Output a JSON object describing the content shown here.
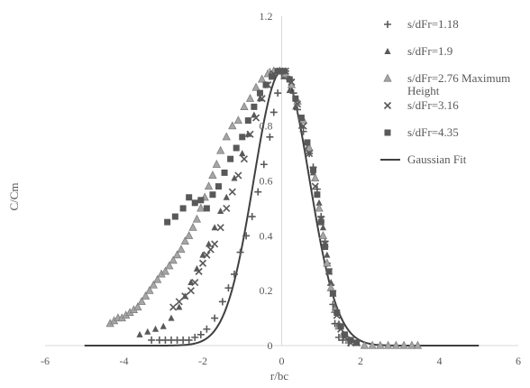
{
  "chart_data": {
    "type": "scatter",
    "title": "",
    "xlabel": "r/bc",
    "ylabel": "C/Cm",
    "xlim": [
      -6,
      6
    ],
    "ylim": [
      0,
      1.2
    ],
    "x_ticks": [
      "-6",
      "-4",
      "-2",
      "0",
      "2",
      "4",
      "6"
    ],
    "y_ticks": [
      "0",
      "0.2",
      "0.4",
      "0.6",
      "0.8",
      "1",
      "1.2"
    ],
    "grid": false,
    "legend_position": "top-right",
    "colors": {
      "markers": "#595959",
      "fit_line": "#404040",
      "axis": "#d9d9d9",
      "text": "#595959"
    },
    "series": [
      {
        "name": "s/dFr=1.18",
        "marker": "plus",
        "points": [
          [
            -3.3,
            0.02
          ],
          [
            -3.1,
            0.02
          ],
          [
            -2.95,
            0.02
          ],
          [
            -2.8,
            0.02
          ],
          [
            -2.65,
            0.02
          ],
          [
            -2.5,
            0.02
          ],
          [
            -2.35,
            0.02
          ],
          [
            -2.2,
            0.03
          ],
          [
            -2.05,
            0.04
          ],
          [
            -1.9,
            0.06
          ],
          [
            -1.7,
            0.1
          ],
          [
            -1.5,
            0.16
          ],
          [
            -1.35,
            0.21
          ],
          [
            -1.2,
            0.26
          ],
          [
            -1.05,
            0.34
          ],
          [
            -0.9,
            0.4
          ],
          [
            -0.75,
            0.47
          ],
          [
            -0.6,
            0.56
          ],
          [
            -0.45,
            0.66
          ],
          [
            -0.3,
            0.76
          ],
          [
            -0.2,
            0.85
          ],
          [
            -0.1,
            0.92
          ],
          [
            0.0,
            0.99
          ],
          [
            0.1,
            1.0
          ],
          [
            0.2,
            0.97
          ],
          [
            0.3,
            0.92
          ],
          [
            0.4,
            0.86
          ],
          [
            0.55,
            0.78
          ],
          [
            0.7,
            0.7
          ],
          [
            0.8,
            0.65
          ],
          [
            0.9,
            0.57
          ],
          [
            1.0,
            0.47
          ],
          [
            1.1,
            0.38
          ],
          [
            1.15,
            0.3
          ],
          [
            1.25,
            0.22
          ],
          [
            1.3,
            0.15
          ],
          [
            1.35,
            0.08
          ],
          [
            1.45,
            0.03
          ],
          [
            1.55,
            0.02
          ],
          [
            1.7,
            0.01
          ]
        ]
      },
      {
        "name": "s/dFr=1.9",
        "marker": "triangle",
        "points": [
          [
            -3.6,
            0.04
          ],
          [
            -3.4,
            0.05
          ],
          [
            -3.2,
            0.06
          ],
          [
            -3.0,
            0.07
          ],
          [
            -2.8,
            0.1
          ],
          [
            -2.6,
            0.14
          ],
          [
            -2.45,
            0.18
          ],
          [
            -2.3,
            0.23
          ],
          [
            -2.15,
            0.28
          ],
          [
            -2.0,
            0.33
          ],
          [
            -1.85,
            0.37
          ],
          [
            -1.7,
            0.43
          ],
          [
            -1.55,
            0.49
          ],
          [
            -1.4,
            0.54
          ],
          [
            -1.2,
            0.61
          ],
          [
            -1.0,
            0.7
          ],
          [
            -0.85,
            0.77
          ],
          [
            -0.7,
            0.84
          ],
          [
            -0.55,
            0.9
          ],
          [
            -0.4,
            0.95
          ],
          [
            -0.25,
            0.98
          ],
          [
            -0.1,
            1.0
          ],
          [
            0.05,
            0.98
          ],
          [
            0.2,
            0.93
          ],
          [
            0.35,
            0.87
          ],
          [
            0.5,
            0.8
          ],
          [
            0.65,
            0.72
          ],
          [
            0.8,
            0.63
          ],
          [
            0.95,
            0.52
          ],
          [
            1.05,
            0.43
          ],
          [
            1.15,
            0.33
          ],
          [
            1.25,
            0.23
          ],
          [
            1.35,
            0.14
          ],
          [
            1.45,
            0.08
          ],
          [
            1.55,
            0.04
          ],
          [
            1.7,
            0.02
          ]
        ]
      },
      {
        "name": "s/dFr=2.76 Maximum Height",
        "marker": "triangle-open",
        "points": [
          [
            -4.35,
            0.08
          ],
          [
            -4.25,
            0.09
          ],
          [
            -4.15,
            0.1
          ],
          [
            -4.05,
            0.1
          ],
          [
            -3.95,
            0.11
          ],
          [
            -3.85,
            0.12
          ],
          [
            -3.75,
            0.13
          ],
          [
            -3.65,
            0.14
          ],
          [
            -3.55,
            0.16
          ],
          [
            -3.45,
            0.18
          ],
          [
            -3.35,
            0.2
          ],
          [
            -3.25,
            0.22
          ],
          [
            -3.15,
            0.24
          ],
          [
            -3.05,
            0.26
          ],
          [
            -2.95,
            0.27
          ],
          [
            -2.85,
            0.29
          ],
          [
            -2.75,
            0.31
          ],
          [
            -2.65,
            0.33
          ],
          [
            -2.55,
            0.35
          ],
          [
            -2.45,
            0.38
          ],
          [
            -2.35,
            0.4
          ],
          [
            -2.25,
            0.43
          ],
          [
            -2.15,
            0.46
          ],
          [
            -2.05,
            0.5
          ],
          [
            -1.95,
            0.54
          ],
          [
            -1.85,
            0.58
          ],
          [
            -1.75,
            0.62
          ],
          [
            -1.65,
            0.66
          ],
          [
            -1.55,
            0.71
          ],
          [
            -1.4,
            0.76
          ],
          [
            -1.25,
            0.8
          ],
          [
            -1.1,
            0.82
          ],
          [
            -0.95,
            0.87
          ],
          [
            -0.8,
            0.9
          ],
          [
            -0.65,
            0.94
          ],
          [
            -0.5,
            0.97
          ],
          [
            -0.35,
            0.99
          ],
          [
            -0.2,
            1.0
          ],
          [
            -0.05,
            1.0
          ],
          [
            0.1,
            0.99
          ],
          [
            0.25,
            0.95
          ],
          [
            0.4,
            0.89
          ],
          [
            0.55,
            0.82
          ],
          [
            0.7,
            0.72
          ],
          [
            0.85,
            0.61
          ],
          [
            0.95,
            0.5
          ],
          [
            1.05,
            0.4
          ],
          [
            1.15,
            0.3
          ],
          [
            1.25,
            0.21
          ],
          [
            1.35,
            0.13
          ],
          [
            1.45,
            0.07
          ],
          [
            1.55,
            0.04
          ],
          [
            1.7,
            0.02
          ],
          [
            1.9,
            0.01
          ],
          [
            2.1,
            0.0
          ],
          [
            2.3,
            0.0
          ],
          [
            2.5,
            0.0
          ],
          [
            2.7,
            0.0
          ],
          [
            2.9,
            0.0
          ],
          [
            3.1,
            0.0
          ],
          [
            3.3,
            0.0
          ],
          [
            3.45,
            0.0
          ]
        ]
      },
      {
        "name": "s/dFr=3.16",
        "marker": "cross",
        "points": [
          [
            -2.75,
            0.14
          ],
          [
            -2.6,
            0.16
          ],
          [
            -2.45,
            0.18
          ],
          [
            -2.3,
            0.2
          ],
          [
            -2.2,
            0.23
          ],
          [
            -2.1,
            0.27
          ],
          [
            -2.0,
            0.3
          ],
          [
            -1.9,
            0.33
          ],
          [
            -1.8,
            0.35
          ],
          [
            -1.7,
            0.37
          ],
          [
            -1.55,
            0.43
          ],
          [
            -1.4,
            0.5
          ],
          [
            -1.25,
            0.56
          ],
          [
            -1.1,
            0.62
          ],
          [
            -0.95,
            0.68
          ],
          [
            -0.8,
            0.77
          ],
          [
            -0.65,
            0.83
          ],
          [
            -0.5,
            0.9
          ],
          [
            -0.35,
            0.95
          ],
          [
            -0.2,
            0.99
          ],
          [
            -0.05,
            1.0
          ],
          [
            0.1,
            1.0
          ],
          [
            0.25,
            0.96
          ],
          [
            0.4,
            0.88
          ],
          [
            0.55,
            0.8
          ],
          [
            0.7,
            0.7
          ],
          [
            0.85,
            0.58
          ],
          [
            1.0,
            0.46
          ],
          [
            1.1,
            0.37
          ],
          [
            1.2,
            0.27
          ],
          [
            1.3,
            0.19
          ],
          [
            1.4,
            0.11
          ],
          [
            1.5,
            0.06
          ],
          [
            1.6,
            0.03
          ],
          [
            1.75,
            0.01
          ],
          [
            1.9,
            0.01
          ]
        ]
      },
      {
        "name": "s/dFr=4.35",
        "marker": "square",
        "points": [
          [
            -2.9,
            0.45
          ],
          [
            -2.7,
            0.47
          ],
          [
            -2.5,
            0.5
          ],
          [
            -2.35,
            0.54
          ],
          [
            -2.2,
            0.52
          ],
          [
            -2.05,
            0.53
          ],
          [
            -1.9,
            0.5
          ],
          [
            -1.75,
            0.55
          ],
          [
            -1.6,
            0.58
          ],
          [
            -1.45,
            0.63
          ],
          [
            -1.3,
            0.68
          ],
          [
            -1.15,
            0.72
          ],
          [
            -1.0,
            0.76
          ],
          [
            -0.85,
            0.82
          ],
          [
            -0.7,
            0.87
          ],
          [
            -0.55,
            0.92
          ],
          [
            -0.4,
            0.95
          ],
          [
            -0.25,
            0.98
          ],
          [
            -0.1,
            1.0
          ],
          [
            0.05,
            1.0
          ],
          [
            0.2,
            0.97
          ],
          [
            0.35,
            0.9
          ],
          [
            0.5,
            0.83
          ],
          [
            0.65,
            0.74
          ],
          [
            0.8,
            0.64
          ],
          [
            0.9,
            0.55
          ],
          [
            1.0,
            0.45
          ],
          [
            1.1,
            0.36
          ],
          [
            1.2,
            0.27
          ],
          [
            1.3,
            0.19
          ],
          [
            1.4,
            0.12
          ],
          [
            1.5,
            0.07
          ],
          [
            1.6,
            0.04
          ],
          [
            1.75,
            0.02
          ],
          [
            1.9,
            0.01
          ]
        ]
      },
      {
        "name": "Gaussian Fit",
        "marker": "line",
        "sigma": 0.705,
        "x_range": [
          -5,
          5
        ]
      }
    ]
  }
}
